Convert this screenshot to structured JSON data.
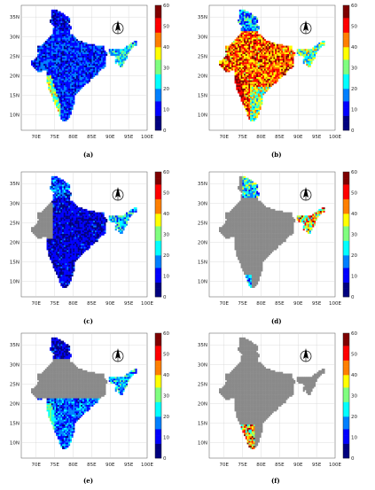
{
  "lon_ticks": [
    "70E",
    "75E",
    "80E",
    "85E",
    "90E",
    "95E",
    "100E"
  ],
  "lat_ticks": [
    "35N",
    "30N",
    "25N",
    "20N",
    "15N",
    "10N"
  ],
  "colorbar_ticks": [
    "60",
    "50",
    "40",
    "30",
    "20",
    "10",
    "0"
  ],
  "colorscale": [
    "#00007f",
    "#0000ff",
    "#007fff",
    "#00ffff",
    "#7fff7f",
    "#ffff00",
    "#ff7f00",
    "#ff0000",
    "#7f0000"
  ],
  "no_data_color": "#8a8a8a",
  "panels": [
    {
      "id": "a",
      "caption": "(a)",
      "pattern": "low-blue-west-coast-high"
    },
    {
      "id": "b",
      "caption": "(b)",
      "pattern": "high-widespread"
    },
    {
      "id": "c",
      "caption": "(c)",
      "pattern": "blue-east-gray-west"
    },
    {
      "id": "d",
      "caption": "(d)",
      "pattern": "gray-mostly-north-east-values"
    },
    {
      "id": "e",
      "caption": "(e)",
      "pattern": "gray-north-blue-south"
    },
    {
      "id": "f",
      "caption": "(f)",
      "pattern": "gray-all-southwest-tip"
    }
  ]
}
